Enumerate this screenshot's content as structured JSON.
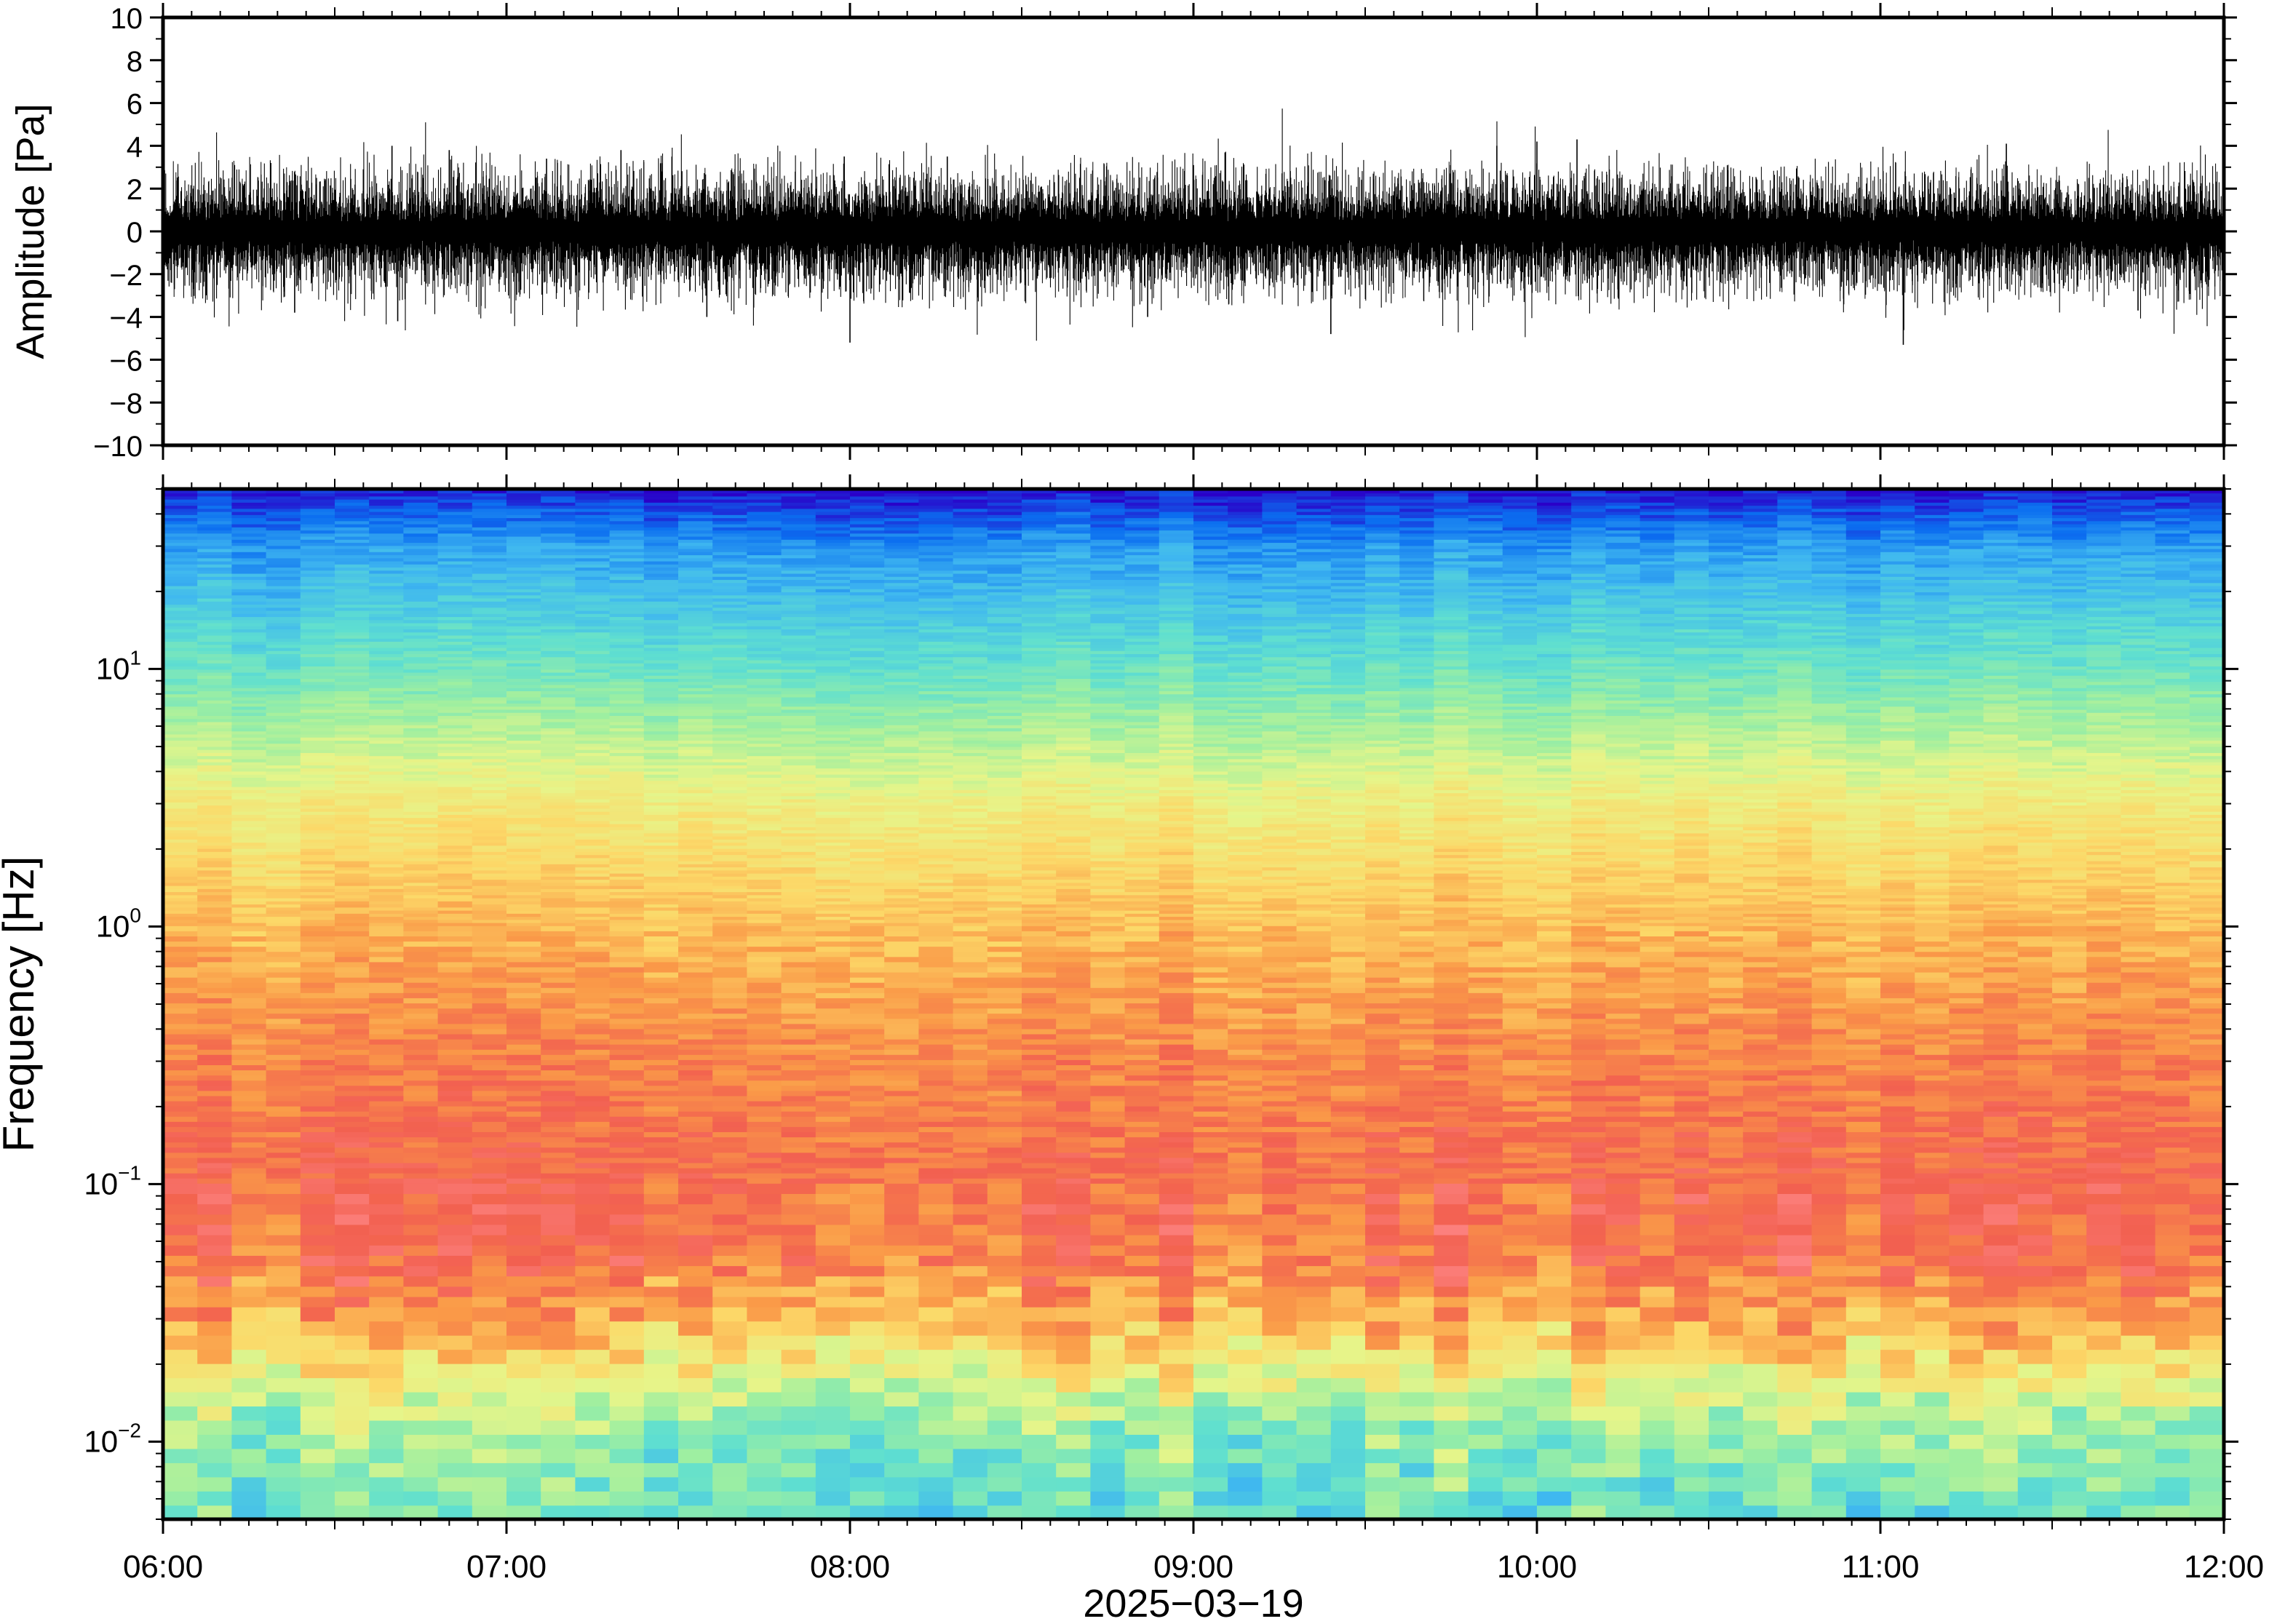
{
  "chart_data": [
    {
      "type": "line",
      "panel": "waveform",
      "ylabel": "Amplitude [Pa]",
      "ylim": [
        -10,
        10
      ],
      "y_ticks": [
        10,
        8,
        6,
        4,
        2,
        0,
        -2,
        -4,
        -6,
        -8,
        -10
      ],
      "y_tick_labels": [
        "10",
        "8",
        "6",
        "4",
        "2",
        "0",
        "−2",
        "−4",
        "−6",
        "−8",
        "−10"
      ],
      "xlim": [
        "06:00",
        "12:00"
      ],
      "grid": false,
      "noise_band_pa": [
        -2,
        2
      ],
      "spikes": [
        {
          "time": "06:23",
          "value": -3.8
        },
        {
          "time": "06:35",
          "value": 2.9
        },
        {
          "time": "06:40",
          "value": 4.0
        },
        {
          "time": "06:41",
          "value": -4.2
        },
        {
          "time": "06:50",
          "value": 3.8
        },
        {
          "time": "07:07",
          "value": 3.4
        },
        {
          "time": "07:20",
          "value": 3.8
        },
        {
          "time": "07:35",
          "value": -4.0
        },
        {
          "time": "07:59",
          "value": 3.5
        },
        {
          "time": "08:00",
          "value": -5.2
        },
        {
          "time": "08:17",
          "value": 3.5
        },
        {
          "time": "08:52",
          "value": -4.0
        },
        {
          "time": "09:00",
          "value": 3.1
        },
        {
          "time": "09:24",
          "value": -4.8
        },
        {
          "time": "09:53",
          "value": 4.0
        },
        {
          "time": "10:00",
          "value": 4.2
        },
        {
          "time": "10:07",
          "value": 4.3
        },
        {
          "time": "11:04",
          "value": -5.3
        },
        {
          "time": "11:22",
          "value": 4.1
        },
        {
          "time": "11:45",
          "value": -3.7
        }
      ]
    },
    {
      "type": "heatmap",
      "panel": "spectrogram",
      "ylabel": "Frequency [Hz]",
      "xlabel": "2025−03−19",
      "y_scale": "log",
      "ylim": [
        0.005,
        50
      ],
      "y_tick_labels": [
        {
          "value": 10,
          "base": "10",
          "exp": "1"
        },
        {
          "value": 1,
          "base": "10",
          "exp": "0"
        },
        {
          "value": 0.1,
          "base": "10",
          "exp": "−1"
        },
        {
          "value": 0.01,
          "base": "10",
          "exp": "−2"
        }
      ],
      "x_tick_labels": [
        "06:00",
        "07:00",
        "08:00",
        "09:00",
        "10:00",
        "11:00",
        "12:00"
      ],
      "xlim": [
        "06:00",
        "12:00"
      ],
      "time_bins": 60,
      "colormap": [
        "#2a00c8",
        "#0b6ef0",
        "#3fb7f0",
        "#5fdfd0",
        "#9fefa0",
        "#e6f58a",
        "#fcd868",
        "#fa9a48",
        "#f26050",
        "#ff8a8a"
      ],
      "mean_profile": [
        {
          "freq_hz": 0.006,
          "level": 0.36
        },
        {
          "freq_hz": 0.012,
          "level": 0.45
        },
        {
          "freq_hz": 0.02,
          "level": 0.62
        },
        {
          "freq_hz": 0.03,
          "level": 0.74
        },
        {
          "freq_hz": 0.05,
          "level": 0.85
        },
        {
          "freq_hz": 0.1,
          "level": 0.87
        },
        {
          "freq_hz": 0.3,
          "level": 0.82
        },
        {
          "freq_hz": 1,
          "level": 0.72
        },
        {
          "freq_hz": 3,
          "level": 0.6
        },
        {
          "freq_hz": 10,
          "level": 0.36
        },
        {
          "freq_hz": 30,
          "level": 0.18
        },
        {
          "freq_hz": 50,
          "level": 0.02
        }
      ]
    }
  ]
}
